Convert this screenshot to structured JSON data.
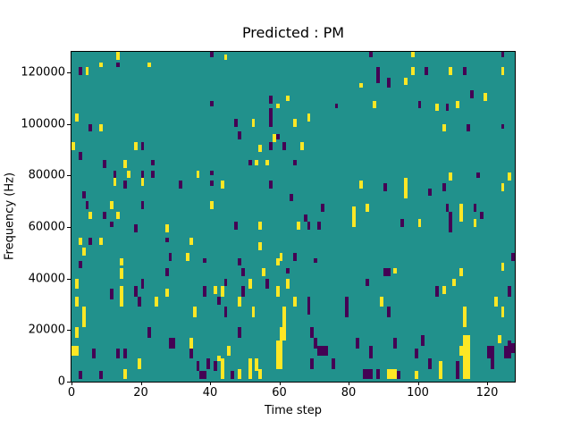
{
  "figure": {
    "title": "Predicted : PM",
    "xlabel": "Time step",
    "ylabel": "Frequency (Hz)"
  },
  "chart_data": {
    "type": "heatmap",
    "title": "Predicted : PM",
    "xlabel": "Time step",
    "ylabel": "Frequency (Hz)",
    "x_bins": 128,
    "y_bins": 128,
    "xlim": [
      0,
      128
    ],
    "ylim": [
      0,
      128000
    ],
    "xticks": [
      0,
      20,
      40,
      60,
      80,
      100,
      120
    ],
    "yticks": [
      0,
      20000,
      40000,
      60000,
      80000,
      100000,
      120000
    ],
    "grid": false,
    "legend": "none",
    "colors": {
      "background": "#21918c",
      "y": "#fde725",
      "d": "#440154"
    },
    "cell_format": "[time_step, top_freq_bin, height_bins, width_bins, color_key]",
    "cells": [
      [
        13,
        127,
        3,
        1,
        "y"
      ],
      [
        40,
        127,
        2,
        1,
        "d"
      ],
      [
        8,
        123,
        2,
        1,
        "y"
      ],
      [
        13,
        123,
        2,
        1,
        "d"
      ],
      [
        22,
        123,
        2,
        1,
        "y"
      ],
      [
        2,
        121,
        3,
        1,
        "d"
      ],
      [
        4,
        121,
        3,
        1,
        "y"
      ],
      [
        40,
        108,
        2,
        1,
        "d"
      ],
      [
        1,
        103,
        3,
        1,
        "y"
      ],
      [
        5,
        99,
        3,
        1,
        "d"
      ],
      [
        8,
        99,
        3,
        1,
        "y"
      ],
      [
        0,
        92,
        3,
        1,
        "y"
      ],
      [
        18,
        92,
        3,
        1,
        "y"
      ],
      [
        20,
        92,
        3,
        1,
        "d"
      ],
      [
        2,
        88,
        3,
        1,
        "d"
      ],
      [
        44,
        126,
        2,
        1,
        "y"
      ],
      [
        83,
        115,
        2,
        1,
        "y"
      ],
      [
        57,
        110,
        3,
        1,
        "d"
      ],
      [
        62,
        110,
        2,
        1,
        "y"
      ],
      [
        59,
        107,
        2,
        1,
        "y"
      ],
      [
        76,
        107,
        2,
        1,
        "d"
      ],
      [
        68,
        103,
        3,
        1,
        "y"
      ],
      [
        57,
        105,
        7,
        1,
        "d"
      ],
      [
        47,
        101,
        3,
        1,
        "d"
      ],
      [
        52,
        101,
        3,
        1,
        "y"
      ],
      [
        64,
        101,
        3,
        1,
        "y"
      ],
      [
        48,
        96,
        3,
        1,
        "d"
      ],
      [
        58,
        95,
        3,
        1,
        "y"
      ],
      [
        59,
        95,
        2,
        1,
        "d"
      ],
      [
        54,
        91,
        3,
        1,
        "y"
      ],
      [
        57,
        92,
        3,
        1,
        "d"
      ],
      [
        61,
        92,
        3,
        1,
        "d"
      ],
      [
        66,
        92,
        3,
        1,
        "y"
      ],
      [
        86,
        127,
        2,
        1,
        "d"
      ],
      [
        98,
        127,
        2,
        1,
        "y"
      ],
      [
        124,
        127,
        2,
        1,
        "d"
      ],
      [
        88,
        121,
        6,
        1,
        "d"
      ],
      [
        91,
        117,
        4,
        1,
        "d"
      ],
      [
        98,
        121,
        3,
        1,
        "y"
      ],
      [
        102,
        121,
        3,
        1,
        "d"
      ],
      [
        96,
        117,
        3,
        1,
        "y"
      ],
      [
        109,
        121,
        3,
        1,
        "y"
      ],
      [
        113,
        121,
        3,
        1,
        "d"
      ],
      [
        124,
        121,
        3,
        1,
        "y"
      ],
      [
        115,
        112,
        3,
        1,
        "d"
      ],
      [
        119,
        111,
        3,
        1,
        "y"
      ],
      [
        87,
        108,
        3,
        1,
        "y"
      ],
      [
        100,
        108,
        3,
        1,
        "d"
      ],
      [
        105,
        107,
        3,
        1,
        "y"
      ],
      [
        108,
        107,
        3,
        1,
        "d"
      ],
      [
        111,
        108,
        3,
        1,
        "y"
      ],
      [
        107,
        99,
        3,
        1,
        "y"
      ],
      [
        114,
        99,
        3,
        1,
        "d"
      ],
      [
        124,
        99,
        2,
        1,
        "d"
      ],
      [
        9,
        85,
        3,
        1,
        "d"
      ],
      [
        15,
        85,
        3,
        1,
        "y"
      ],
      [
        23,
        85,
        2,
        1,
        "d"
      ],
      [
        12,
        81,
        3,
        1,
        "d"
      ],
      [
        16,
        81,
        3,
        1,
        "y"
      ],
      [
        20,
        81,
        3,
        1,
        "d"
      ],
      [
        23,
        81,
        3,
        1,
        "d"
      ],
      [
        31,
        77,
        3,
        1,
        "d"
      ],
      [
        36,
        81,
        3,
        1,
        "y"
      ],
      [
        40,
        81,
        2,
        1,
        "d"
      ],
      [
        40,
        77,
        2,
        1,
        "d"
      ],
      [
        12,
        78,
        3,
        1,
        "y"
      ],
      [
        15,
        77,
        3,
        1,
        "d"
      ],
      [
        20,
        78,
        3,
        1,
        "y"
      ],
      [
        3,
        73,
        3,
        1,
        "d"
      ],
      [
        4,
        69,
        3,
        1,
        "d"
      ],
      [
        11,
        69,
        3,
        1,
        "y"
      ],
      [
        20,
        69,
        3,
        1,
        "d"
      ],
      [
        40,
        69,
        3,
        1,
        "y"
      ],
      [
        5,
        65,
        3,
        1,
        "y"
      ],
      [
        9,
        65,
        3,
        1,
        "d"
      ],
      [
        13,
        65,
        3,
        1,
        "y"
      ],
      [
        11,
        61,
        2,
        1,
        "d"
      ],
      [
        18,
        60,
        3,
        1,
        "d"
      ],
      [
        27,
        60,
        3,
        1,
        "y"
      ],
      [
        2,
        55,
        3,
        1,
        "y"
      ],
      [
        3,
        51,
        3,
        1,
        "y"
      ],
      [
        5,
        55,
        3,
        1,
        "d"
      ],
      [
        8,
        55,
        3,
        1,
        "y"
      ],
      [
        2,
        46,
        3,
        1,
        "d"
      ],
      [
        14,
        47,
        3,
        1,
        "y"
      ],
      [
        27,
        55,
        2,
        1,
        "d"
      ],
      [
        28,
        49,
        3,
        1,
        "d"
      ],
      [
        34,
        55,
        3,
        1,
        "y"
      ],
      [
        33,
        49,
        3,
        1,
        "y"
      ],
      [
        38,
        47,
        2,
        1,
        "d"
      ],
      [
        51,
        85,
        2,
        1,
        "d"
      ],
      [
        53,
        85,
        2,
        1,
        "y"
      ],
      [
        56,
        85,
        2,
        1,
        "y"
      ],
      [
        64,
        85,
        2,
        1,
        "d"
      ],
      [
        43,
        77,
        3,
        1,
        "y"
      ],
      [
        57,
        77,
        3,
        1,
        "d"
      ],
      [
        83,
        77,
        3,
        1,
        "y"
      ],
      [
        63,
        72,
        3,
        1,
        "d"
      ],
      [
        72,
        68,
        3,
        1,
        "d"
      ],
      [
        85,
        68,
        3,
        1,
        "y"
      ],
      [
        67,
        64,
        3,
        1,
        "d"
      ],
      [
        81,
        67,
        8,
        1,
        "y"
      ],
      [
        47,
        61,
        3,
        1,
        "d"
      ],
      [
        54,
        61,
        3,
        1,
        "y"
      ],
      [
        65,
        61,
        3,
        1,
        "y"
      ],
      [
        68,
        61,
        3,
        1,
        "d"
      ],
      [
        71,
        61,
        3,
        1,
        "d"
      ],
      [
        54,
        53,
        3,
        1,
        "y"
      ],
      [
        60,
        49,
        3,
        1,
        "y"
      ],
      [
        64,
        49,
        3,
        1,
        "d"
      ],
      [
        59,
        47,
        3,
        1,
        "y"
      ],
      [
        70,
        47,
        2,
        1,
        "d"
      ],
      [
        48,
        47,
        3,
        1,
        "d"
      ],
      [
        109,
        80,
        3,
        1,
        "y"
      ],
      [
        117,
        80,
        2,
        1,
        "d"
      ],
      [
        126,
        80,
        3,
        1,
        "y"
      ],
      [
        90,
        76,
        3,
        1,
        "d"
      ],
      [
        96,
        78,
        8,
        1,
        "y"
      ],
      [
        103,
        74,
        3,
        1,
        "d"
      ],
      [
        107,
        76,
        3,
        1,
        "d"
      ],
      [
        124,
        76,
        3,
        1,
        "y"
      ],
      [
        108,
        68,
        3,
        1,
        "d"
      ],
      [
        112,
        68,
        7,
        1,
        "y"
      ],
      [
        116,
        68,
        3,
        1,
        "d"
      ],
      [
        109,
        65,
        8,
        1,
        "d"
      ],
      [
        118,
        65,
        3,
        1,
        "d"
      ],
      [
        116,
        62,
        3,
        1,
        "y"
      ],
      [
        95,
        62,
        3,
        1,
        "d"
      ],
      [
        100,
        62,
        3,
        1,
        "y"
      ],
      [
        127,
        49,
        3,
        1,
        "d"
      ],
      [
        124,
        45,
        3,
        1,
        "y"
      ],
      [
        14,
        43,
        4,
        1,
        "y"
      ],
      [
        27,
        43,
        3,
        1,
        "d"
      ],
      [
        1,
        39,
        4,
        1,
        "y"
      ],
      [
        20,
        39,
        4,
        1,
        "d"
      ],
      [
        11,
        35,
        4,
        1,
        "d"
      ],
      [
        14,
        36,
        8,
        1,
        "y"
      ],
      [
        18,
        36,
        4,
        1,
        "d"
      ],
      [
        19,
        32,
        4,
        1,
        "d"
      ],
      [
        27,
        35,
        3,
        1,
        "y"
      ],
      [
        24,
        32,
        4,
        1,
        "y"
      ],
      [
        38,
        36,
        4,
        1,
        "d"
      ],
      [
        41,
        36,
        3,
        1,
        "y"
      ],
      [
        42,
        32,
        3,
        1,
        "d"
      ],
      [
        35,
        28,
        4,
        1,
        "y"
      ],
      [
        1,
        32,
        4,
        1,
        "y"
      ],
      [
        3,
        28,
        4,
        1,
        "y"
      ],
      [
        3,
        24,
        4,
        1,
        "y"
      ],
      [
        1,
        20,
        4,
        1,
        "y"
      ],
      [
        22,
        20,
        4,
        1,
        "d"
      ],
      [
        28,
        16,
        4,
        2,
        "d"
      ],
      [
        34,
        16,
        4,
        1,
        "y"
      ],
      [
        0,
        13,
        4,
        2,
        "y"
      ],
      [
        6,
        12,
        4,
        1,
        "d"
      ],
      [
        13,
        12,
        4,
        1,
        "d"
      ],
      [
        15,
        12,
        4,
        1,
        "d"
      ],
      [
        19,
        8,
        4,
        1,
        "y"
      ],
      [
        34,
        12,
        4,
        1,
        "d"
      ],
      [
        36,
        7,
        4,
        1,
        "d"
      ],
      [
        39,
        8,
        4,
        1,
        "d"
      ],
      [
        41,
        7,
        4,
        1,
        "d"
      ],
      [
        42,
        9,
        2,
        1,
        "y"
      ],
      [
        8,
        3,
        3,
        1,
        "d"
      ],
      [
        15,
        4,
        4,
        1,
        "y"
      ],
      [
        37,
        3,
        3,
        2,
        "d"
      ],
      [
        2,
        3,
        3,
        1,
        "d"
      ],
      [
        49,
        43,
        3,
        1,
        "d"
      ],
      [
        55,
        43,
        3,
        1,
        "y"
      ],
      [
        62,
        43,
        2,
        1,
        "d"
      ],
      [
        44,
        39,
        3,
        1,
        "d"
      ],
      [
        51,
        39,
        4,
        1,
        "y"
      ],
      [
        56,
        39,
        4,
        1,
        "d"
      ],
      [
        62,
        39,
        4,
        1,
        "y"
      ],
      [
        85,
        39,
        3,
        1,
        "d"
      ],
      [
        43,
        36,
        4,
        1,
        "y"
      ],
      [
        49,
        36,
        4,
        1,
        "d"
      ],
      [
        59,
        36,
        4,
        1,
        "y"
      ],
      [
        48,
        32,
        4,
        1,
        "y"
      ],
      [
        64,
        32,
        4,
        1,
        "y"
      ],
      [
        68,
        32,
        7,
        1,
        "d"
      ],
      [
        79,
        32,
        4,
        1,
        "d"
      ],
      [
        79,
        28,
        4,
        1,
        "d"
      ],
      [
        44,
        28,
        4,
        1,
        "d"
      ],
      [
        52,
        28,
        4,
        1,
        "y"
      ],
      [
        61,
        28,
        9,
        1,
        "y"
      ],
      [
        48,
        20,
        4,
        1,
        "d"
      ],
      [
        60,
        20,
        5,
        2,
        "y"
      ],
      [
        59,
        15,
        4,
        2,
        "y"
      ],
      [
        59,
        11,
        7,
        2,
        "y"
      ],
      [
        45,
        13,
        4,
        1,
        "y"
      ],
      [
        69,
        20,
        4,
        1,
        "d"
      ],
      [
        70,
        16,
        4,
        1,
        "d"
      ],
      [
        71,
        13,
        4,
        3,
        "d"
      ],
      [
        69,
        8,
        4,
        1,
        "d"
      ],
      [
        75,
        8,
        4,
        1,
        "d"
      ],
      [
        43,
        8,
        8,
        1,
        "y"
      ],
      [
        46,
        3,
        3,
        1,
        "d"
      ],
      [
        48,
        4,
        4,
        1,
        "y"
      ],
      [
        51,
        8,
        8,
        1,
        "y"
      ],
      [
        53,
        8,
        5,
        1,
        "y"
      ],
      [
        54,
        4,
        4,
        1,
        "y"
      ],
      [
        82,
        16,
        4,
        1,
        "d"
      ],
      [
        84,
        4,
        4,
        3,
        "d"
      ],
      [
        90,
        43,
        3,
        2,
        "d"
      ],
      [
        93,
        43,
        2,
        1,
        "y"
      ],
      [
        112,
        43,
        3,
        1,
        "y"
      ],
      [
        110,
        39,
        3,
        1,
        "y"
      ],
      [
        105,
        36,
        4,
        1,
        "d"
      ],
      [
        107,
        36,
        3,
        1,
        "y"
      ],
      [
        126,
        36,
        4,
        1,
        "d"
      ],
      [
        89,
        32,
        4,
        1,
        "y"
      ],
      [
        122,
        32,
        4,
        1,
        "y"
      ],
      [
        91,
        28,
        4,
        1,
        "d"
      ],
      [
        113,
        28,
        4,
        1,
        "y"
      ],
      [
        124,
        28,
        4,
        1,
        "y"
      ],
      [
        113,
        24,
        4,
        1,
        "y"
      ],
      [
        113,
        17,
        4,
        2,
        "y"
      ],
      [
        112,
        13,
        4,
        3,
        "y"
      ],
      [
        113,
        9,
        4,
        2,
        "y"
      ],
      [
        113,
        5,
        5,
        2,
        "y"
      ],
      [
        93,
        16,
        4,
        1,
        "d"
      ],
      [
        101,
        17,
        4,
        1,
        "d"
      ],
      [
        123,
        17,
        3,
        1,
        "y"
      ],
      [
        126,
        15,
        3,
        1,
        "d"
      ],
      [
        86,
        13,
        5,
        1,
        "d"
      ],
      [
        99,
        12,
        4,
        1,
        "d"
      ],
      [
        120,
        13,
        5,
        2,
        "d"
      ],
      [
        125,
        13,
        5,
        2,
        "d"
      ],
      [
        127,
        14,
        4,
        1,
        "d"
      ],
      [
        103,
        8,
        4,
        1,
        "d"
      ],
      [
        106,
        7,
        4,
        1,
        "y"
      ],
      [
        111,
        7,
        4,
        1,
        "d"
      ],
      [
        121,
        8,
        4,
        1,
        "d"
      ],
      [
        86,
        4,
        4,
        1,
        "d"
      ],
      [
        88,
        4,
        4,
        1,
        "d"
      ],
      [
        91,
        4,
        4,
        3,
        "y"
      ],
      [
        94,
        3,
        3,
        1,
        "d"
      ],
      [
        99,
        3,
        3,
        1,
        "y"
      ],
      [
        106,
        3,
        3,
        1,
        "y"
      ],
      [
        111,
        3,
        3,
        1,
        "d"
      ]
    ]
  }
}
